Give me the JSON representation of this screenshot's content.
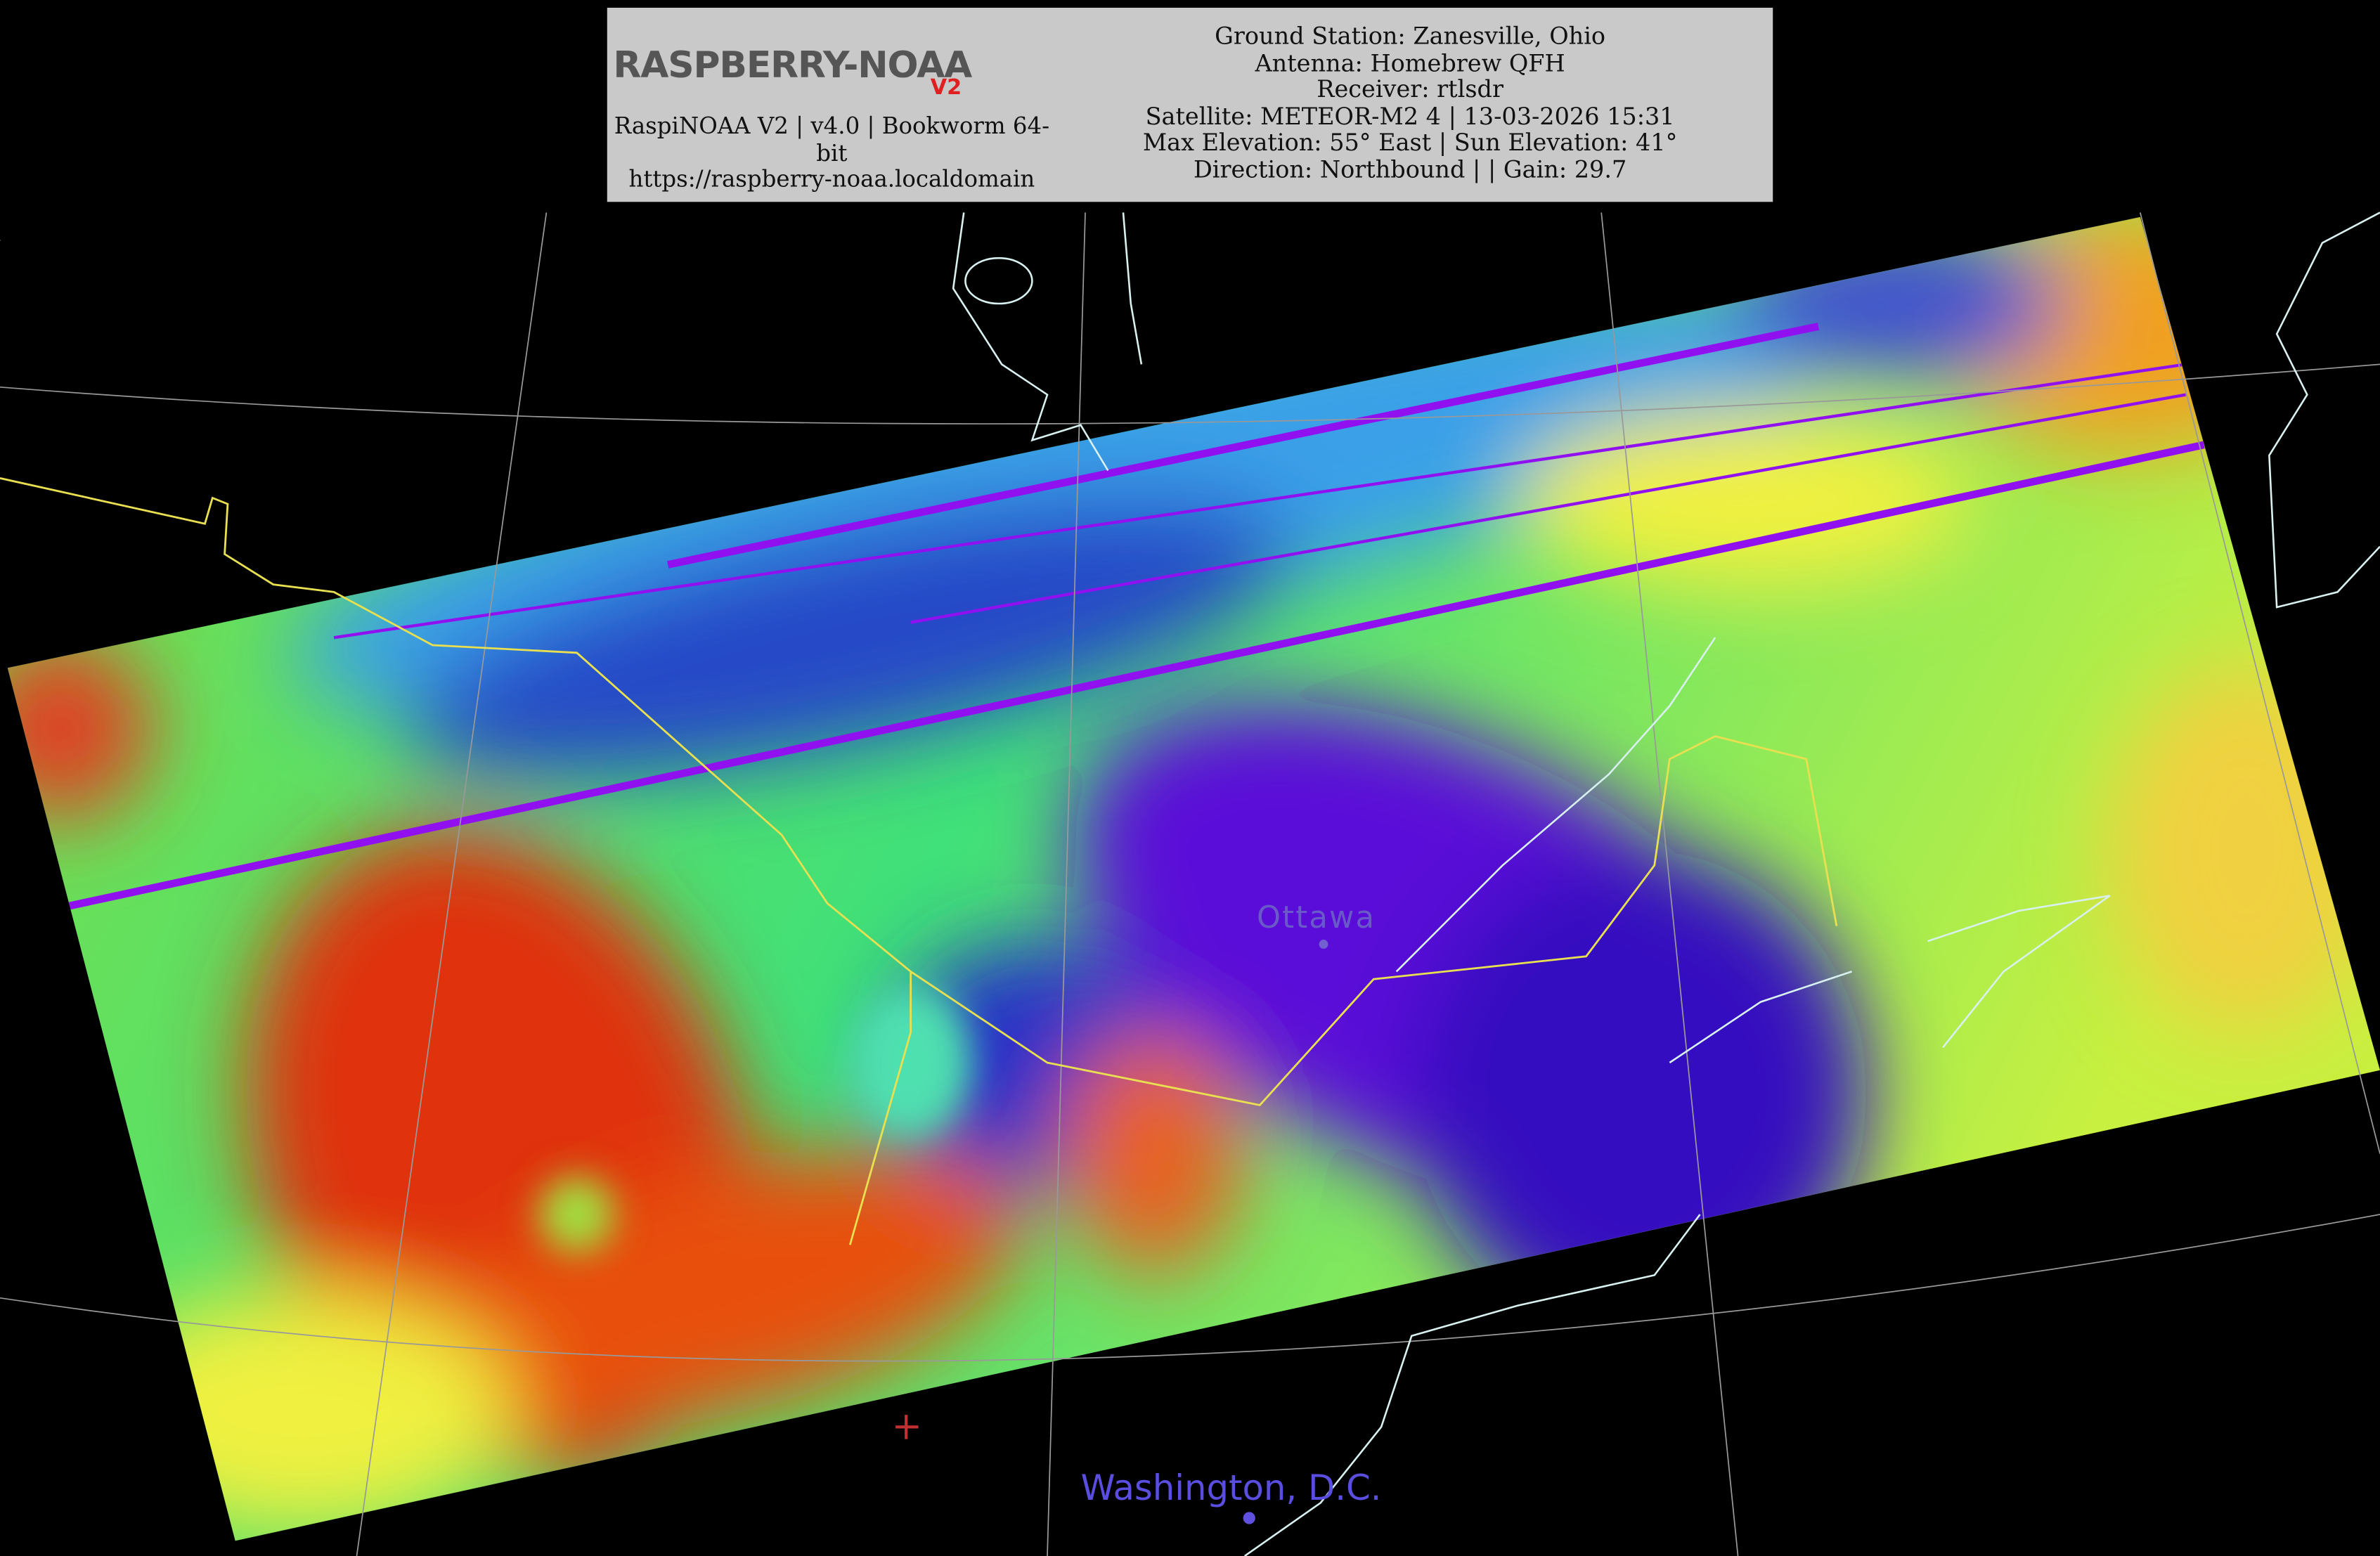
{
  "header": {
    "logo": {
      "text": "RASPBERRY-NOAA",
      "badge": "V2"
    },
    "left": [
      "RaspiNOAA V2 | v4.0 | Bookworm 64-bit",
      "https://raspberry-noaa.localdomain"
    ],
    "right": [
      "Ground Station: Zanesville, Ohio",
      "Antenna: Homebrew QFH",
      "Receiver: rtlsdr",
      "Satellite: METEOR-M2 4 | 13-03-2026 15:31",
      "Max Elevation: 55° East | Sun Elevation: 41°",
      "Direction: Northbound | | Gain: 29.7"
    ]
  },
  "map": {
    "labels": [
      "Ottawa",
      "Washington, D.C."
    ]
  }
}
